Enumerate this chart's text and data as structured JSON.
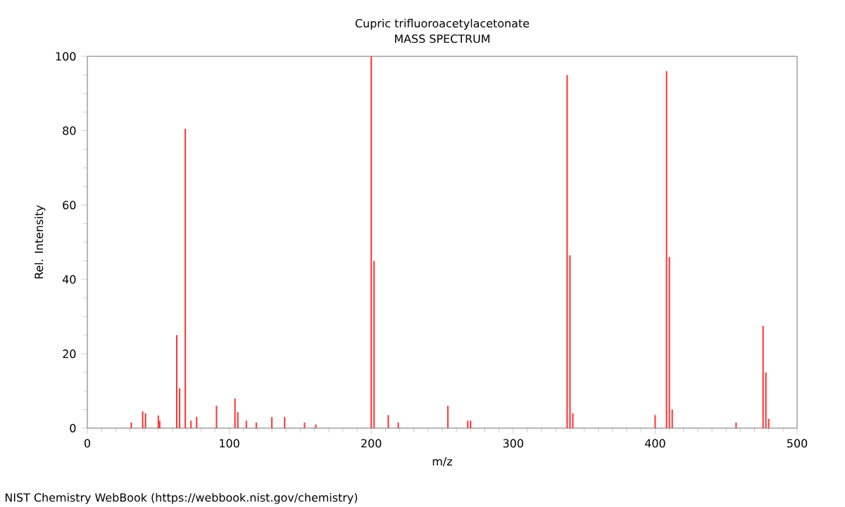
{
  "chart_data": {
    "type": "bar",
    "title": "Cupric trifluoroacetylacetonate",
    "subtitle": "MASS SPECTRUM",
    "xlabel": "m/z",
    "ylabel": "Rel. Intensity",
    "x": [
      31,
      39,
      41,
      50,
      51,
      63,
      65,
      69,
      73,
      77,
      91,
      104,
      106,
      112,
      119,
      130,
      139,
      153,
      161,
      200,
      202,
      212,
      219,
      254,
      268,
      270,
      338,
      340,
      342,
      400,
      408,
      410,
      412,
      457,
      476,
      478,
      480
    ],
    "values": [
      1.5,
      4.5,
      4,
      3.4,
      2,
      25,
      10.7,
      80.5,
      2,
      3,
      6,
      8,
      4.3,
      2,
      1.5,
      3,
      3,
      1.5,
      1,
      100,
      45,
      3.5,
      1.5,
      6,
      2,
      2,
      95,
      46.5,
      4,
      3.5,
      96,
      46,
      5,
      1.5,
      27.5,
      15,
      2.5
    ],
    "color": "#ff3333",
    "xlim": [
      0,
      500
    ],
    "ylim": [
      0,
      100
    ],
    "xticks": [
      0,
      100,
      200,
      300,
      400,
      500
    ],
    "yticks": [
      0,
      20,
      40,
      60,
      80,
      100
    ],
    "annotations": [
      "NIST Chemistry WebBook (https://webbook.nist.gov/chemistry)"
    ]
  }
}
